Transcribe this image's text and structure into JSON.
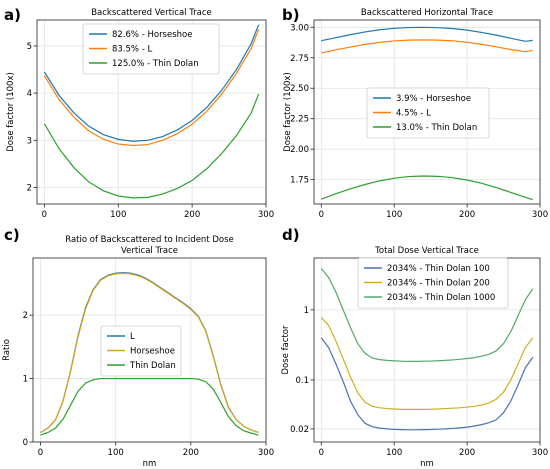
{
  "chart_data": [
    {
      "panel": "a)",
      "type": "line",
      "title": "Backscattered Vertical Trace",
      "xlabel": "",
      "ylabel": "Dose factor (100x)",
      "xlim": [
        -10,
        300
      ],
      "ylim": [
        1.65,
        5.55
      ],
      "xticks": [
        0,
        100,
        200,
        300
      ],
      "yticks": [
        2,
        3,
        4,
        5
      ],
      "yscale": "linear",
      "grid": true,
      "legend_loc": "upper-center",
      "x": [
        0,
        20,
        40,
        60,
        80,
        100,
        120,
        140,
        160,
        180,
        200,
        220,
        240,
        260,
        280,
        290
      ],
      "series": [
        {
          "name": "82.6%   - Horseshoe",
          "color": "#1f77b4",
          "values": [
            4.45,
            3.95,
            3.58,
            3.3,
            3.12,
            3.02,
            2.98,
            3.0,
            3.08,
            3.22,
            3.42,
            3.7,
            4.06,
            4.5,
            5.05,
            5.45
          ]
        },
        {
          "name": "83.5%   - L",
          "color": "#ff7f0e",
          "values": [
            4.37,
            3.86,
            3.49,
            3.2,
            3.02,
            2.92,
            2.89,
            2.91,
            3.0,
            3.14,
            3.34,
            3.62,
            3.98,
            4.42,
            4.95,
            5.35
          ]
        },
        {
          "name": "125.0% - Thin Dolan",
          "color": "#2ca02c",
          "values": [
            3.35,
            2.82,
            2.42,
            2.12,
            1.93,
            1.82,
            1.78,
            1.79,
            1.86,
            1.98,
            2.15,
            2.4,
            2.72,
            3.1,
            3.58,
            3.98
          ]
        }
      ]
    },
    {
      "panel": "b)",
      "type": "line",
      "title": "Backscattered Horizontal Trace",
      "xlabel": "",
      "ylabel": "Dose factor (100x)",
      "xlim": [
        -10,
        300
      ],
      "ylim": [
        1.55,
        3.06
      ],
      "xticks": [
        0,
        100,
        200,
        300
      ],
      "yticks": [
        1.75,
        2.0,
        2.25,
        2.5,
        2.75,
        3.0
      ],
      "ytick_labels": [
        "1.75",
        "2.00",
        "2.25",
        "2.50",
        "2.75",
        "3.00"
      ],
      "yscale": "linear",
      "grid": true,
      "legend_loc": "center",
      "x": [
        0,
        20,
        40,
        60,
        80,
        100,
        120,
        140,
        160,
        180,
        200,
        220,
        240,
        260,
        280,
        290
      ],
      "series": [
        {
          "name": "3.9%   - Horseshoe",
          "color": "#1f77b4",
          "values": [
            2.89,
            2.915,
            2.94,
            2.962,
            2.98,
            2.992,
            2.998,
            3.0,
            2.997,
            2.99,
            2.977,
            2.958,
            2.936,
            2.91,
            2.885,
            2.893
          ]
        },
        {
          "name": "4.5%   - L",
          "color": "#ff7f0e",
          "values": [
            2.79,
            2.815,
            2.838,
            2.86,
            2.876,
            2.888,
            2.895,
            2.897,
            2.895,
            2.889,
            2.877,
            2.86,
            2.84,
            2.817,
            2.8,
            2.81
          ]
        },
        {
          "name": "13.0% - Thin Dolan",
          "color": "#2ca02c",
          "values": [
            1.59,
            1.635,
            1.675,
            1.71,
            1.74,
            1.762,
            1.775,
            1.78,
            1.777,
            1.766,
            1.747,
            1.72,
            1.685,
            1.645,
            1.605,
            1.585
          ]
        }
      ]
    },
    {
      "panel": "c)",
      "type": "line",
      "title": "Ratio of Backscattered to Incident Dose\nVertical Trace",
      "xlabel": "nm",
      "ylabel": "Ratio",
      "xlim": [
        -10,
        300
      ],
      "ylim": [
        0,
        2.9
      ],
      "xticks": [
        0,
        100,
        200,
        300
      ],
      "yticks": [
        0,
        1,
        2
      ],
      "yscale": "linear",
      "grid": true,
      "legend_loc": "center",
      "x": [
        0,
        10,
        20,
        30,
        40,
        50,
        60,
        70,
        80,
        90,
        100,
        110,
        120,
        130,
        140,
        150,
        160,
        170,
        180,
        190,
        200,
        210,
        220,
        230,
        240,
        250,
        260,
        270,
        280,
        290
      ],
      "series": [
        {
          "name": "L",
          "color": "#1f77b4",
          "values": [
            0.15,
            0.22,
            0.35,
            0.65,
            1.12,
            1.68,
            2.12,
            2.4,
            2.56,
            2.63,
            2.66,
            2.67,
            2.66,
            2.63,
            2.58,
            2.51,
            2.43,
            2.35,
            2.27,
            2.19,
            2.1,
            1.98,
            1.75,
            1.35,
            0.9,
            0.55,
            0.36,
            0.25,
            0.19,
            0.15
          ]
        },
        {
          "name": "Horseshoe",
          "color": "#daa520",
          "values": [
            0.15,
            0.22,
            0.35,
            0.65,
            1.11,
            1.66,
            2.1,
            2.39,
            2.55,
            2.62,
            2.65,
            2.66,
            2.65,
            2.62,
            2.57,
            2.5,
            2.42,
            2.34,
            2.26,
            2.18,
            2.09,
            1.97,
            1.74,
            1.34,
            0.89,
            0.54,
            0.36,
            0.25,
            0.19,
            0.15
          ]
        },
        {
          "name": "Thin Dolan",
          "color": "#2ca02c",
          "values": [
            0.11,
            0.15,
            0.22,
            0.36,
            0.58,
            0.8,
            0.93,
            0.98,
            1.0,
            1.0,
            1.0,
            1.0,
            1.0,
            1.0,
            1.0,
            1.0,
            1.0,
            1.0,
            1.0,
            1.0,
            1.0,
            0.99,
            0.95,
            0.83,
            0.62,
            0.4,
            0.26,
            0.18,
            0.14,
            0.11
          ]
        }
      ]
    },
    {
      "panel": "d)",
      "type": "line",
      "title": "Total Dose Vertical Trace",
      "xlabel": "nm",
      "ylabel": "Dose factor",
      "xlim": [
        -10,
        300
      ],
      "ylim": [
        0.013,
        5.5
      ],
      "xticks": [
        0,
        100,
        200,
        300
      ],
      "yticks": [
        0.02,
        0.1,
        1
      ],
      "ytick_labels": [
        "0.02",
        "0.1",
        "1"
      ],
      "yscale": "log",
      "grid": true,
      "legend_loc": "upper-center",
      "x": [
        0,
        10,
        20,
        30,
        40,
        50,
        60,
        70,
        80,
        90,
        100,
        110,
        120,
        130,
        140,
        150,
        160,
        170,
        180,
        190,
        200,
        210,
        220,
        230,
        240,
        250,
        260,
        270,
        280,
        290
      ],
      "series": [
        {
          "name": "2034% - Thin Dolan 100",
          "color": "#4c72b0",
          "values": [
            0.4,
            0.29,
            0.17,
            0.095,
            0.05,
            0.032,
            0.024,
            0.0215,
            0.0205,
            0.02,
            0.0197,
            0.0195,
            0.0194,
            0.0194,
            0.0195,
            0.0196,
            0.0198,
            0.02,
            0.0203,
            0.0207,
            0.0212,
            0.022,
            0.023,
            0.0245,
            0.027,
            0.034,
            0.05,
            0.085,
            0.15,
            0.21
          ]
        },
        {
          "name": "2034% - Thin Dolan 200",
          "color": "#ccb022",
          "values": [
            0.78,
            0.6,
            0.36,
            0.2,
            0.11,
            0.066,
            0.048,
            0.042,
            0.04,
            0.039,
            0.0385,
            0.038,
            0.038,
            0.038,
            0.038,
            0.0382,
            0.0385,
            0.039,
            0.0395,
            0.04,
            0.041,
            0.042,
            0.044,
            0.047,
            0.053,
            0.067,
            0.1,
            0.17,
            0.29,
            0.4
          ]
        },
        {
          "name": "2034% - Thin Dolan 1000",
          "color": "#55a868",
          "values": [
            3.9,
            2.9,
            1.8,
            1.0,
            0.56,
            0.33,
            0.24,
            0.205,
            0.195,
            0.19,
            0.187,
            0.185,
            0.184,
            0.184,
            0.185,
            0.186,
            0.188,
            0.19,
            0.193,
            0.197,
            0.202,
            0.208,
            0.218,
            0.232,
            0.26,
            0.33,
            0.49,
            0.83,
            1.4,
            2.0
          ]
        }
      ]
    }
  ]
}
